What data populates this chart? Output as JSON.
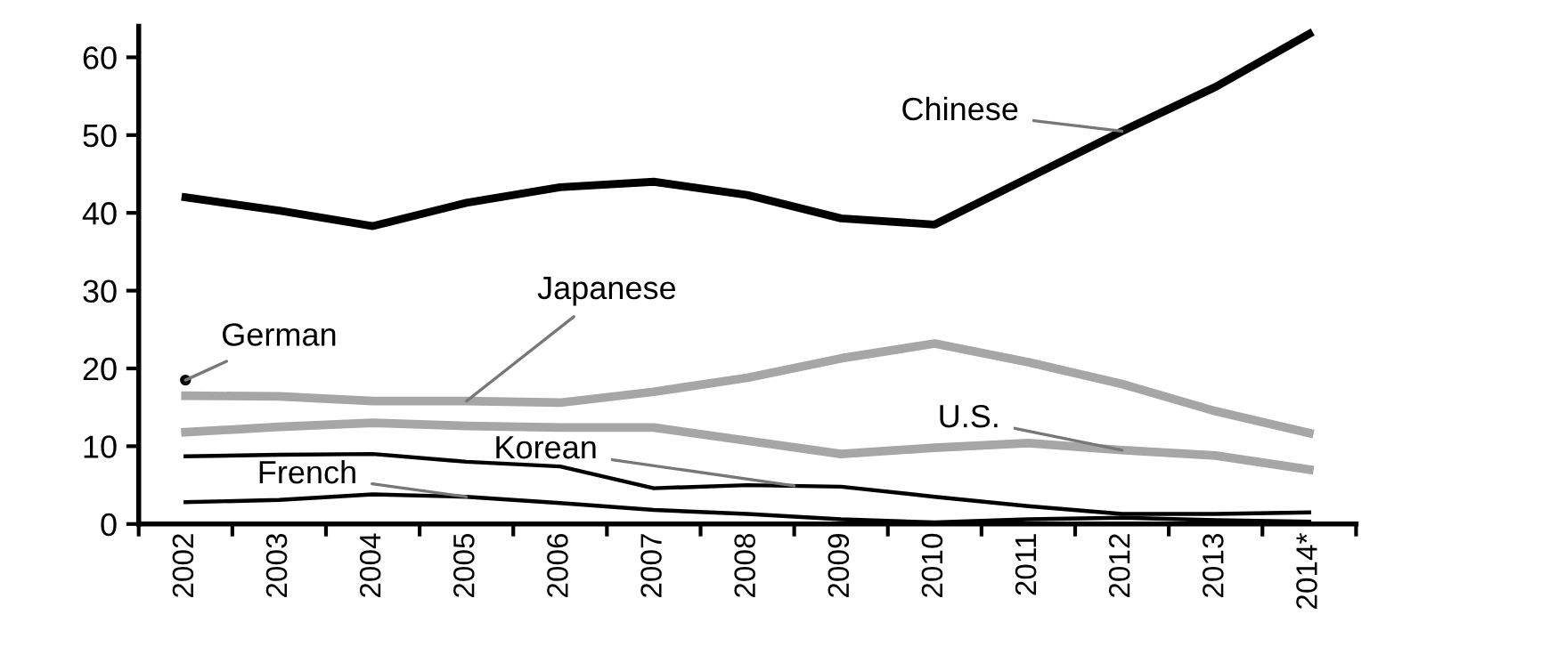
{
  "chart_data": {
    "type": "line",
    "categories": [
      "2002",
      "2003",
      "2004",
      "2005",
      "2006",
      "2007",
      "2008",
      "2009",
      "2010",
      "2011",
      "2012",
      "2013",
      "2014*"
    ],
    "ylim": [
      0,
      64
    ],
    "yticks": [
      0,
      10,
      20,
      30,
      40,
      50,
      60
    ],
    "grid": false,
    "marker": "none",
    "line_style": "solid",
    "series": [
      {
        "name": "Chinese",
        "color": "#000000",
        "values": [
          42,
          40.3,
          38.3,
          41.3,
          43.3,
          44,
          42.3,
          39.3,
          38.5,
          44.5,
          50.5,
          56.2,
          63
        ]
      },
      {
        "name": "Japanese",
        "color": "#a6a6a6",
        "values": [
          16.5,
          16.4,
          15.8,
          15.8,
          15.6,
          17,
          18.8,
          21.3,
          23.2,
          20.8,
          18,
          14.5,
          11.7
        ]
      },
      {
        "name": "German",
        "color": "#000000",
        "type": "scatter",
        "marker": "circle",
        "values": [
          18.5,
          null,
          null,
          null,
          null,
          null,
          null,
          null,
          null,
          null,
          null,
          null,
          null
        ]
      },
      {
        "name": "U.S.",
        "color": "#a6a6a6",
        "values": [
          11.8,
          12.5,
          13,
          12.6,
          12.4,
          12.4,
          10.7,
          9,
          9.8,
          10.4,
          9.5,
          8.8,
          7
        ]
      },
      {
        "name": "Korean",
        "color": "#000000",
        "values": [
          8.7,
          8.9,
          9,
          8,
          7.4,
          4.6,
          5,
          4.8,
          3.5,
          2.3,
          1.3,
          1.3,
          1.5
        ]
      },
      {
        "name": "French",
        "color": "#000000",
        "values": [
          2.8,
          3.1,
          3.8,
          3.5,
          2.7,
          1.8,
          1.3,
          0.6,
          0.2,
          0.6,
          0.8,
          0.5,
          0.3
        ]
      }
    ]
  }
}
